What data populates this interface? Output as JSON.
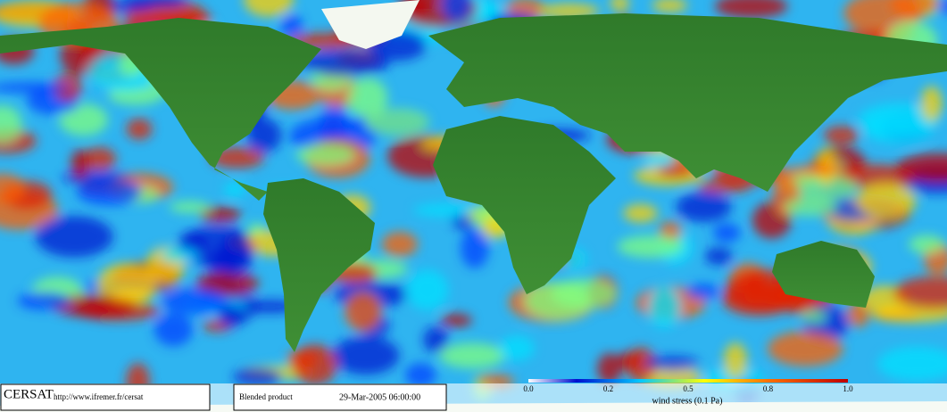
{
  "footer": {
    "logo": "CERSAT",
    "url": "http://www.ifremer.fr/cersat",
    "product": "Blended product",
    "date": "29-Mar-2005 06:00:00"
  },
  "colorbar": {
    "ticks": [
      "0.0",
      "0.2",
      "0.5",
      "0.8",
      "1.0"
    ],
    "label": "wind stress (0.1 Pa)"
  }
}
